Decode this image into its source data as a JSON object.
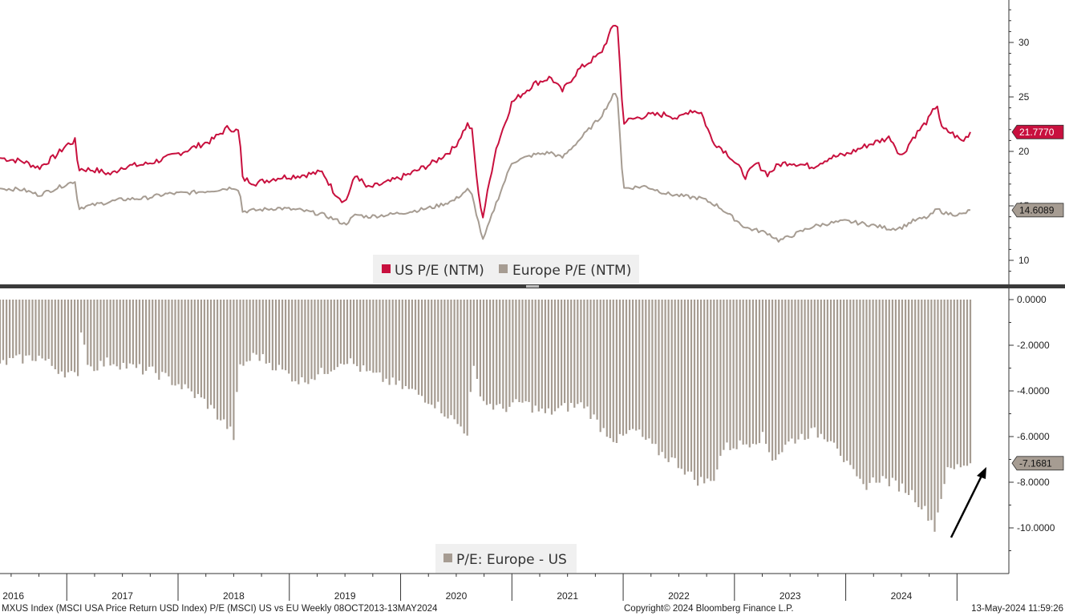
{
  "chart_data": [
    {
      "type": "line",
      "title": "",
      "xlabel": "",
      "ylabel": "",
      "ylim": [
        5,
        34
      ],
      "yticks": [
        10,
        15,
        20,
        25,
        30
      ],
      "grid": false,
      "legend_position": "bottom-center",
      "x_years": [
        "2016",
        "2017",
        "2018",
        "2019",
        "2020",
        "2021",
        "2022",
        "2023",
        "2024"
      ],
      "series": [
        {
          "name": "US P/E (NTM)",
          "color": "#c8103e",
          "last_value_label": "21.7770",
          "points": [
            [
              2015.9,
              19.4
            ],
            [
              2016.1,
              19.1
            ],
            [
              2016.25,
              18.5
            ],
            [
              2016.4,
              19.6
            ],
            [
              2016.5,
              20.6
            ],
            [
              2016.58,
              21.0
            ],
            [
              2016.6,
              18.4
            ],
            [
              2016.75,
              18.3
            ],
            [
              2016.9,
              17.9
            ],
            [
              2017.0,
              18.6
            ],
            [
              2017.2,
              18.8
            ],
            [
              2017.4,
              19.4
            ],
            [
              2017.6,
              20.2
            ],
            [
              2017.8,
              21.0
            ],
            [
              2017.95,
              22.2
            ],
            [
              2018.05,
              21.8
            ],
            [
              2018.08,
              17.5
            ],
            [
              2018.2,
              17.1
            ],
            [
              2018.4,
              17.6
            ],
            [
              2018.6,
              17.8
            ],
            [
              2018.8,
              18.1
            ],
            [
              2018.9,
              16.3
            ],
            [
              2019.0,
              15.3
            ],
            [
              2019.1,
              17.9
            ],
            [
              2019.2,
              16.6
            ],
            [
              2019.4,
              17.2
            ],
            [
              2019.6,
              18.0
            ],
            [
              2019.8,
              19.0
            ],
            [
              2019.98,
              20.3
            ],
            [
              2020.1,
              22.5
            ],
            [
              2020.14,
              22.0
            ],
            [
              2020.2,
              16.0
            ],
            [
              2020.24,
              14.0
            ],
            [
              2020.35,
              20.0
            ],
            [
              2020.5,
              24.5
            ],
            [
              2020.7,
              26.2
            ],
            [
              2020.85,
              26.8
            ],
            [
              2020.95,
              25.5
            ],
            [
              2021.1,
              27.5
            ],
            [
              2021.3,
              29.0
            ],
            [
              2021.42,
              31.7
            ],
            [
              2021.45,
              31.5
            ],
            [
              2021.5,
              22.7
            ],
            [
              2021.7,
              23.3
            ],
            [
              2021.9,
              23.4
            ],
            [
              2022.0,
              23.0
            ],
            [
              2022.1,
              23.8
            ],
            [
              2022.2,
              23.6
            ],
            [
              2022.3,
              21.0
            ],
            [
              2022.45,
              19.7
            ],
            [
              2022.6,
              17.7
            ],
            [
              2022.7,
              18.9
            ],
            [
              2022.8,
              17.9
            ],
            [
              2022.9,
              18.8
            ],
            [
              2023.0,
              19.0
            ],
            [
              2023.2,
              18.6
            ],
            [
              2023.35,
              19.4
            ],
            [
              2023.5,
              19.7
            ],
            [
              2023.7,
              20.6
            ],
            [
              2023.9,
              21.3
            ],
            [
              2024.0,
              19.5
            ],
            [
              2024.1,
              21.2
            ],
            [
              2024.25,
              23.0
            ],
            [
              2024.32,
              24.4
            ],
            [
              2024.36,
              22.1
            ],
            [
              2024.45,
              21.7
            ],
            [
              2024.55,
              20.9
            ],
            [
              2024.62,
              21.78
            ]
          ]
        },
        {
          "name": "Europe P/E (NTM)",
          "color": "#a69c92",
          "last_value_label": "14.6089",
          "points": [
            [
              2015.9,
              16.6
            ],
            [
              2016.1,
              16.5
            ],
            [
              2016.25,
              16.0
            ],
            [
              2016.4,
              16.6
            ],
            [
              2016.58,
              17.3
            ],
            [
              2016.6,
              14.8
            ],
            [
              2016.75,
              15.1
            ],
            [
              2016.9,
              15.4
            ],
            [
              2017.0,
              15.6
            ],
            [
              2017.2,
              15.7
            ],
            [
              2017.4,
              16.1
            ],
            [
              2017.6,
              16.2
            ],
            [
              2017.8,
              16.4
            ],
            [
              2018.0,
              16.7
            ],
            [
              2018.05,
              16.5
            ],
            [
              2018.08,
              14.5
            ],
            [
              2018.2,
              14.6
            ],
            [
              2018.4,
              14.8
            ],
            [
              2018.6,
              14.6
            ],
            [
              2018.8,
              14.2
            ],
            [
              2018.9,
              13.8
            ],
            [
              2019.0,
              13.3
            ],
            [
              2019.1,
              14.2
            ],
            [
              2019.2,
              14.0
            ],
            [
              2019.4,
              14.2
            ],
            [
              2019.6,
              14.5
            ],
            [
              2019.8,
              14.9
            ],
            [
              2019.98,
              15.5
            ],
            [
              2020.1,
              16.5
            ],
            [
              2020.14,
              16.0
            ],
            [
              2020.2,
              13.5
            ],
            [
              2020.24,
              11.8
            ],
            [
              2020.35,
              15.0
            ],
            [
              2020.5,
              19.0
            ],
            [
              2020.7,
              19.7
            ],
            [
              2020.85,
              19.9
            ],
            [
              2020.95,
              19.4
            ],
            [
              2021.1,
              21.0
            ],
            [
              2021.3,
              23.2
            ],
            [
              2021.42,
              25.3
            ],
            [
              2021.45,
              25.0
            ],
            [
              2021.5,
              16.6
            ],
            [
              2021.7,
              16.8
            ],
            [
              2021.9,
              16.1
            ],
            [
              2022.1,
              15.8
            ],
            [
              2022.2,
              15.7
            ],
            [
              2022.35,
              15.0
            ],
            [
              2022.45,
              14.2
            ],
            [
              2022.6,
              13.0
            ],
            [
              2022.8,
              12.5
            ],
            [
              2022.9,
              11.8
            ],
            [
              2023.0,
              12.2
            ],
            [
              2023.2,
              13.1
            ],
            [
              2023.35,
              13.4
            ],
            [
              2023.5,
              13.6
            ],
            [
              2023.7,
              13.3
            ],
            [
              2023.9,
              12.9
            ],
            [
              2024.0,
              13.0
            ],
            [
              2024.1,
              13.6
            ],
            [
              2024.25,
              14.0
            ],
            [
              2024.32,
              14.7
            ],
            [
              2024.4,
              14.3
            ],
            [
              2024.55,
              14.2
            ],
            [
              2024.62,
              14.61
            ]
          ]
        }
      ]
    },
    {
      "type": "bar",
      "title": "",
      "xlabel": "",
      "ylabel": "",
      "ylim": [
        -12.2,
        0.5
      ],
      "yticks": [
        "0.0000",
        "-2.0000",
        "-4.0000",
        "-6.0000",
        "-8.0000",
        "-10.0000"
      ],
      "grid": false,
      "legend_position": "bottom-center",
      "series": [
        {
          "name": "P/E: Europe - US",
          "color": "#a69c92",
          "last_value_label": "-7.1681",
          "points": [
            [
              2015.9,
              -2.8
            ],
            [
              2016.1,
              -2.6
            ],
            [
              2016.25,
              -2.5
            ],
            [
              2016.4,
              -3.0
            ],
            [
              2016.55,
              -3.3
            ],
            [
              2016.6,
              -3.5
            ],
            [
              2016.62,
              -1.0
            ],
            [
              2016.7,
              -3.0
            ],
            [
              2016.9,
              -2.7
            ],
            [
              2017.1,
              -3.0
            ],
            [
              2017.3,
              -3.2
            ],
            [
              2017.5,
              -3.7
            ],
            [
              2017.75,
              -4.5
            ],
            [
              2017.95,
              -5.6
            ],
            [
              2018.0,
              -6.0
            ],
            [
              2018.05,
              -3.0
            ],
            [
              2018.2,
              -2.4
            ],
            [
              2018.4,
              -3.0
            ],
            [
              2018.6,
              -3.6
            ],
            [
              2018.8,
              -3.2
            ],
            [
              2019.0,
              -2.6
            ],
            [
              2019.2,
              -3.2
            ],
            [
              2019.4,
              -3.6
            ],
            [
              2019.6,
              -4.0
            ],
            [
              2019.8,
              -4.5
            ],
            [
              2020.0,
              -5.4
            ],
            [
              2020.1,
              -5.8
            ],
            [
              2020.15,
              -3.0
            ],
            [
              2020.25,
              -4.5
            ],
            [
              2020.4,
              -4.8
            ],
            [
              2020.6,
              -4.5
            ],
            [
              2020.8,
              -5.0
            ],
            [
              2021.0,
              -4.7
            ],
            [
              2021.15,
              -4.6
            ],
            [
              2021.3,
              -5.6
            ],
            [
              2021.45,
              -6.2
            ],
            [
              2021.6,
              -5.7
            ],
            [
              2021.8,
              -6.6
            ],
            [
              2022.0,
              -7.2
            ],
            [
              2022.15,
              -7.9
            ],
            [
              2022.3,
              -8.0
            ],
            [
              2022.4,
              -6.5
            ],
            [
              2022.6,
              -6.3
            ],
            [
              2022.75,
              -6.0
            ],
            [
              2022.85,
              -7.0
            ],
            [
              2023.0,
              -6.2
            ],
            [
              2023.2,
              -5.8
            ],
            [
              2023.4,
              -6.1
            ],
            [
              2023.5,
              -7.2
            ],
            [
              2023.65,
              -8.2
            ],
            [
              2023.8,
              -7.8
            ],
            [
              2024.0,
              -8.2
            ],
            [
              2024.1,
              -8.5
            ],
            [
              2024.25,
              -9.5
            ],
            [
              2024.3,
              -10.0
            ],
            [
              2024.4,
              -7.6
            ],
            [
              2024.55,
              -7.2
            ],
            [
              2024.62,
              -7.17
            ]
          ]
        }
      ]
    }
  ],
  "footer": {
    "left": "MXUS Index (MSCI USA Price Return USD Index) P/E (MSCI) US vs EU  Weekly 08OCT2013-13MAY2024",
    "center": "Copyright© 2024 Bloomberg Finance L.P.",
    "right": "13-May-2024 11:59:26"
  }
}
